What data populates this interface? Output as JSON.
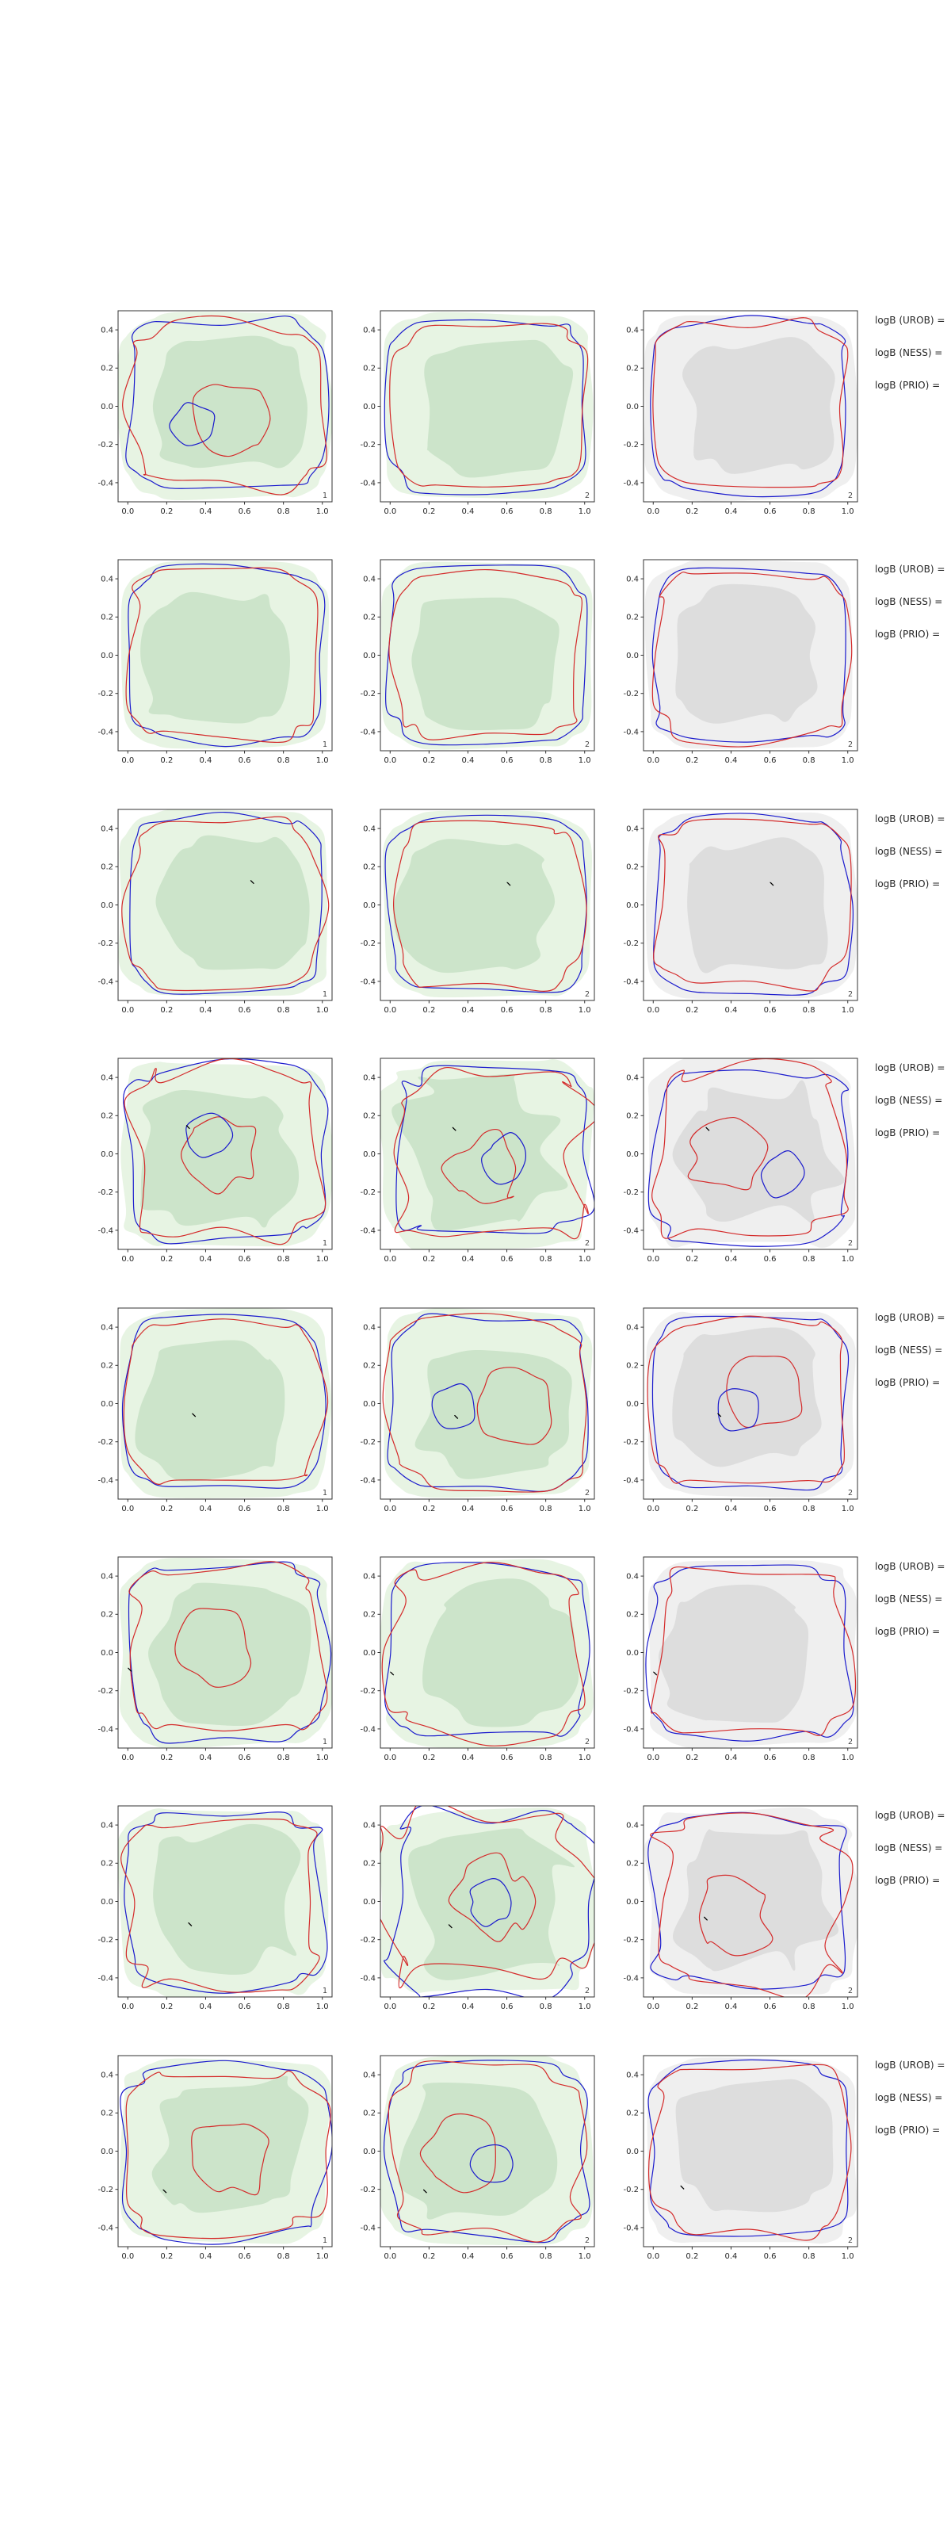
{
  "figure": {
    "background": "#ffffff",
    "colors": {
      "blue_contour": "#1a1acd",
      "red_contour": "#d42a2a",
      "green_fill_light": "#e7f4e3",
      "green_fill_mid": "#c9e2c6",
      "gray_fill_light": "#efefef",
      "gray_fill_mid": "#dadada",
      "marker": "#000000",
      "axis": "#333333",
      "text": "#262626"
    },
    "axes": {
      "xlim": [
        -0.05,
        1.05
      ],
      "ylim": [
        -0.5,
        0.5
      ],
      "x_tick_values": [
        0.0,
        0.2,
        0.4,
        0.6,
        0.8,
        1.0
      ],
      "x_tick_labels": [
        "0.0",
        "0.2",
        "0.4",
        "0.6",
        "0.8",
        "1.0"
      ],
      "y_tick_values": [
        0.4,
        0.2,
        0.0,
        -0.2,
        -0.4
      ],
      "y_tick_labels": [
        "0.4",
        "0.2",
        "0.0",
        "-0.2",
        "-0.4"
      ]
    }
  },
  "chart_data": {
    "type": "contour-grid",
    "n_rows": 8,
    "n_cols": 3,
    "title": "",
    "xlabel": "",
    "ylabel": "",
    "legend": [],
    "side_labels": [
      "logB (UROB) =",
      "logB (NESS) =",
      "logB (PRIO) ="
    ],
    "series_meaning": {
      "blue_line": "posterior contour (blue)",
      "red_line": "posterior contour (red)",
      "fill": "kernel density shading (green cols 1-2, gray col 3)",
      "x_marker": "reference point"
    },
    "rows": [
      {
        "subplots": [
          {
            "corner": "1",
            "fill": "green",
            "marker": null,
            "seed": 101,
            "noise": 0.07,
            "inner": true
          },
          {
            "corner": "2",
            "fill": "green",
            "marker": null,
            "seed": 102,
            "noise": 0.06,
            "inner": false
          },
          {
            "corner": "2",
            "fill": "gray",
            "marker": null,
            "seed": 103,
            "noise": 0.06,
            "inner": false
          }
        ]
      },
      {
        "subplots": [
          {
            "corner": "1",
            "fill": "green",
            "marker": null,
            "seed": 201,
            "noise": 0.06,
            "inner": false
          },
          {
            "corner": "2",
            "fill": "green",
            "marker": null,
            "seed": 202,
            "noise": 0.06,
            "inner": false
          },
          {
            "corner": "2",
            "fill": "gray",
            "marker": null,
            "seed": 203,
            "noise": 0.06,
            "inner": false
          }
        ]
      },
      {
        "subplots": [
          {
            "corner": "1",
            "fill": "green",
            "marker": {
              "x": 0.63,
              "y": 0.13
            },
            "seed": 301,
            "noise": 0.07,
            "inner": false
          },
          {
            "corner": "2",
            "fill": "green",
            "marker": {
              "x": 0.6,
              "y": 0.12
            },
            "seed": 302,
            "noise": 0.06,
            "inner": false
          },
          {
            "corner": "2",
            "fill": "gray",
            "marker": {
              "x": 0.6,
              "y": 0.12
            },
            "seed": 303,
            "noise": 0.06,
            "inner": false
          }
        ]
      },
      {
        "subplots": [
          {
            "corner": "1",
            "fill": "green",
            "marker": {
              "x": 0.3,
              "y": 0.15
            },
            "seed": 401,
            "noise": 0.1,
            "inner": true
          },
          {
            "corner": "2",
            "fill": "green",
            "marker": {
              "x": 0.32,
              "y": 0.14
            },
            "seed": 402,
            "noise": 0.16,
            "inner": true
          },
          {
            "corner": "2",
            "fill": "gray",
            "marker": {
              "x": 0.27,
              "y": 0.14
            },
            "seed": 403,
            "noise": 0.12,
            "inner": true
          }
        ]
      },
      {
        "subplots": [
          {
            "corner": "1",
            "fill": "green",
            "marker": {
              "x": 0.33,
              "y": -0.05
            },
            "seed": 501,
            "noise": 0.06,
            "inner": false
          },
          {
            "corner": "2",
            "fill": "green",
            "marker": {
              "x": 0.33,
              "y": -0.06
            },
            "seed": 502,
            "noise": 0.07,
            "inner": true
          },
          {
            "corner": "2",
            "fill": "gray",
            "marker": {
              "x": 0.33,
              "y": -0.05
            },
            "seed": 503,
            "noise": 0.06,
            "inner": true
          }
        ]
      },
      {
        "subplots": [
          {
            "corner": "1",
            "fill": "green",
            "marker": {
              "x": 0.0,
              "y": -0.08
            },
            "seed": 601,
            "noise": 0.08,
            "inner": true
          },
          {
            "corner": "2",
            "fill": "green",
            "marker": {
              "x": 0.0,
              "y": -0.1
            },
            "seed": 602,
            "noise": 0.08,
            "inner": false
          },
          {
            "corner": "2",
            "fill": "gray",
            "marker": {
              "x": 0.0,
              "y": -0.1
            },
            "seed": 603,
            "noise": 0.08,
            "inner": false
          }
        ]
      },
      {
        "subplots": [
          {
            "corner": "1",
            "fill": "green",
            "marker": {
              "x": 0.31,
              "y": -0.11
            },
            "seed": 701,
            "noise": 0.09,
            "inner": false
          },
          {
            "corner": "2",
            "fill": "green",
            "marker": {
              "x": 0.3,
              "y": -0.12
            },
            "seed": 702,
            "noise": 0.17,
            "inner": true
          },
          {
            "corner": "2",
            "fill": "gray",
            "marker": {
              "x": 0.26,
              "y": -0.08
            },
            "seed": 703,
            "noise": 0.13,
            "inner": true
          }
        ]
      },
      {
        "subplots": [
          {
            "corner": "1",
            "fill": "green",
            "marker": {
              "x": 0.18,
              "y": -0.2
            },
            "seed": 801,
            "noise": 0.09,
            "inner": true
          },
          {
            "corner": "2",
            "fill": "green",
            "marker": {
              "x": 0.17,
              "y": -0.2
            },
            "seed": 802,
            "noise": 0.08,
            "inner": true
          },
          {
            "corner": "2",
            "fill": "gray",
            "marker": {
              "x": 0.14,
              "y": -0.18
            },
            "seed": 803,
            "noise": 0.07,
            "inner": false
          }
        ]
      }
    ]
  }
}
